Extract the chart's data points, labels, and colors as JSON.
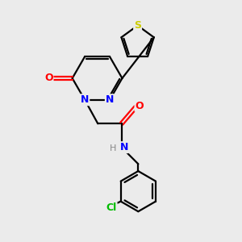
{
  "bg_color": "#ebebeb",
  "bond_color": "#000000",
  "bond_width": 1.6,
  "atom_colors": {
    "N": "#0000ff",
    "O": "#ff0000",
    "S": "#cccc00",
    "Cl": "#00bb00",
    "H": "#888888"
  },
  "font_size": 9,
  "fig_size": [
    3.0,
    3.0
  ],
  "dpi": 100
}
